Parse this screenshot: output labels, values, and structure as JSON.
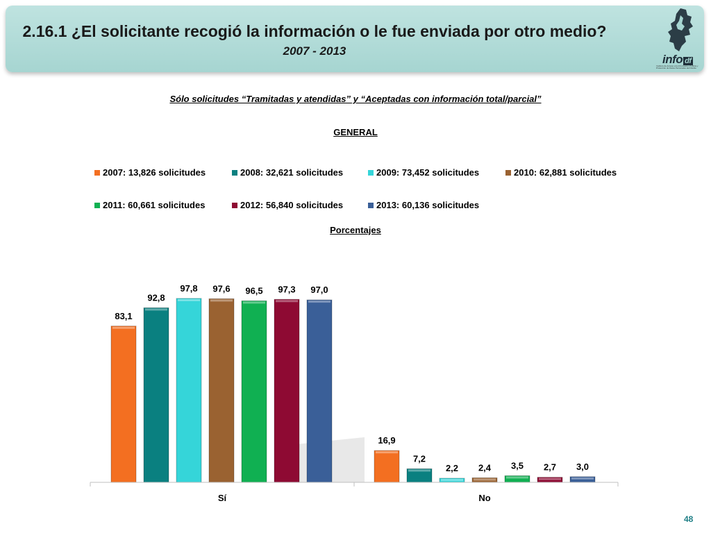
{
  "header": {
    "title": "2.16.1 ¿El solicitante recogió la información o le fue enviada por otro medio?",
    "years": "2007 - 2013"
  },
  "logo": {
    "word": "info",
    "suffix": "df",
    "subtext": "Instituto de Acceso a la Información Pública y Protección de Datos Personales del Distrito Federal"
  },
  "subtitle": "Sólo solicitudes “Tramitadas y atendidas” y “Aceptadas con información total/parcial”",
  "section_label": "GENERAL",
  "unit_label": "Porcentajes",
  "page_number": "48",
  "colors": {
    "s2007": "#f36f21",
    "s2008": "#0a8080",
    "s2009": "#35d5d9",
    "s2010": "#9a6231",
    "s2011": "#10b052",
    "s2012": "#8e0a33",
    "s2013": "#3a5f98"
  },
  "chart_data": {
    "type": "bar",
    "categories": [
      "Sí",
      "No"
    ],
    "series": [
      {
        "name": "2007: 13,826 solicitudes",
        "values": [
          83.1,
          16.9
        ],
        "labels": [
          "83,1",
          "16,9"
        ],
        "color": "#f36f21"
      },
      {
        "name": "2008: 32,621 solicitudes",
        "values": [
          92.8,
          7.2
        ],
        "labels": [
          "92,8",
          "7,2"
        ],
        "color": "#0a8080"
      },
      {
        "name": "2009: 73,452 solicitudes",
        "values": [
          97.8,
          2.2
        ],
        "labels": [
          "97,8",
          "2,2"
        ],
        "color": "#35d5d9"
      },
      {
        "name": "2010: 62,881 solicitudes",
        "values": [
          97.6,
          2.4
        ],
        "labels": [
          "97,6",
          "2,4"
        ],
        "color": "#9a6231"
      },
      {
        "name": "2011: 60,661 solicitudes",
        "values": [
          96.5,
          3.5
        ],
        "labels": [
          "96,5",
          "3,5"
        ],
        "color": "#10b052"
      },
      {
        "name": "2012: 56,840 solicitudes",
        "values": [
          97.3,
          2.7
        ],
        "labels": [
          "97,3",
          "2,7"
        ],
        "color": "#8e0a33"
      },
      {
        "name": "2013: 60,136 solicitudes",
        "values": [
          97.0,
          3.0
        ],
        "labels": [
          "97,0",
          "3,0"
        ],
        "color": "#3a5f98"
      }
    ],
    "ylim": [
      0,
      100
    ],
    "grid": false,
    "legend": "top"
  }
}
